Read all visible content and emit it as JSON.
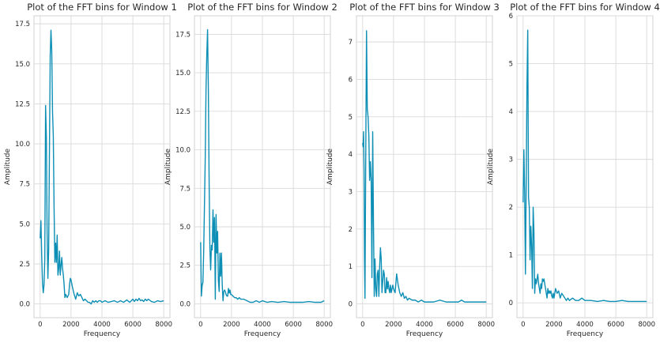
{
  "colors": {
    "series": "#0d8fb5",
    "grid": "#d9d9d9",
    "frame": "#cccccc",
    "text": "#262626"
  },
  "chart_data": [
    {
      "type": "line",
      "title": "Plot of the FFT bins for Window 1",
      "xlabel": "Frequency",
      "ylabel": "Amplitude",
      "xlim": [
        -400,
        8400
      ],
      "ylim": [
        -0.86,
        18.0
      ],
      "xticks": [
        0,
        2000,
        4000,
        6000,
        8000
      ],
      "xtick_labels": [
        "0",
        "2000",
        "4000",
        "6000",
        "8000"
      ],
      "yticks": [
        0,
        2.5,
        5,
        7.5,
        10,
        12.5,
        15,
        17.5
      ],
      "ytick_labels": [
        "0.0",
        "2.5",
        "5.0",
        "7.5",
        "10.0",
        "12.5",
        "15.0",
        "17.5"
      ],
      "grid": true,
      "x": [
        0,
        50,
        100,
        150,
        200,
        250,
        300,
        350,
        400,
        450,
        500,
        550,
        600,
        650,
        700,
        750,
        800,
        850,
        900,
        950,
        1000,
        1050,
        1100,
        1150,
        1200,
        1250,
        1300,
        1350,
        1400,
        1450,
        1500,
        1550,
        1600,
        1650,
        1700,
        1750,
        1800,
        1850,
        1900,
        1950,
        2000,
        2100,
        2200,
        2300,
        2400,
        2500,
        2600,
        2700,
        2800,
        2900,
        3000,
        3100,
        3200,
        3300,
        3400,
        3500,
        3600,
        3700,
        3800,
        3900,
        4000,
        4200,
        4400,
        4600,
        4800,
        5000,
        5200,
        5400,
        5600,
        5800,
        6000,
        6100,
        6200,
        6300,
        6400,
        6500,
        6600,
        6700,
        6800,
        6900,
        7000,
        7200,
        7400,
        7600,
        7800,
        8000
      ],
      "y": [
        4.1,
        5.2,
        3.0,
        1.3,
        0.7,
        1.2,
        2.8,
        12.4,
        10.5,
        4.5,
        1.6,
        3.4,
        9.5,
        15.5,
        17.1,
        15.8,
        12.0,
        10.5,
        6.0,
        2.6,
        3.8,
        2.6,
        4.3,
        1.8,
        2.2,
        3.3,
        1.8,
        2.4,
        2.9,
        2.2,
        1.8,
        1.2,
        0.4,
        0.6,
        0.5,
        0.4,
        0.5,
        0.6,
        1.2,
        1.6,
        1.5,
        1.0,
        0.6,
        0.3,
        0.7,
        0.5,
        0.6,
        0.4,
        0.2,
        0.3,
        0.2,
        0.1,
        0.1,
        0.0,
        0.2,
        0.1,
        0.2,
        0.1,
        0.2,
        0.2,
        0.1,
        0.2,
        0.1,
        0.15,
        0.2,
        0.1,
        0.2,
        0.1,
        0.25,
        0.1,
        0.3,
        0.15,
        0.3,
        0.2,
        0.35,
        0.2,
        0.25,
        0.15,
        0.3,
        0.2,
        0.3,
        0.15,
        0.1,
        0.2,
        0.15,
        0.2
      ]
    },
    {
      "type": "line",
      "title": "Plot of the FFT bins for Window 2",
      "xlabel": "Frequency",
      "ylabel": "Amplitude",
      "xlim": [
        -400,
        8400
      ],
      "ylim": [
        -0.9,
        18.7
      ],
      "xticks": [
        0,
        2000,
        4000,
        6000,
        8000
      ],
      "xtick_labels": [
        "0",
        "2000",
        "4000",
        "6000",
        "8000"
      ],
      "yticks": [
        0,
        2.5,
        5,
        7.5,
        10,
        12.5,
        15,
        17.5
      ],
      "ytick_labels": [
        "0.0",
        "2.5",
        "5.0",
        "7.5",
        "10.0",
        "12.5",
        "15.0",
        "17.5"
      ],
      "grid": true,
      "x": [
        0,
        50,
        100,
        150,
        200,
        250,
        300,
        350,
        400,
        450,
        500,
        550,
        600,
        650,
        700,
        750,
        800,
        850,
        900,
        950,
        1000,
        1050,
        1100,
        1150,
        1200,
        1250,
        1300,
        1350,
        1400,
        1450,
        1500,
        1550,
        1600,
        1650,
        1700,
        1750,
        1800,
        1850,
        1900,
        1950,
        2000,
        2100,
        2200,
        2300,
        2400,
        2500,
        2600,
        2800,
        3000,
        3200,
        3400,
        3600,
        3800,
        4000,
        4300,
        4600,
        5000,
        5400,
        5800,
        6200,
        6600,
        7000,
        7400,
        7800,
        8000
      ],
      "y": [
        4.0,
        0.5,
        1.2,
        1.4,
        3.5,
        6.5,
        9.5,
        14.0,
        16.2,
        17.8,
        14.0,
        8.0,
        3.6,
        2.2,
        3.8,
        3.5,
        6.1,
        4.0,
        5.6,
        0.3,
        5.8,
        3.3,
        4.7,
        1.5,
        0.8,
        3.3,
        1.8,
        3.3,
        1.2,
        0.2,
        0.8,
        0.9,
        0.8,
        0.6,
        0.5,
        0.5,
        1.0,
        0.7,
        0.9,
        0.6,
        0.6,
        0.5,
        0.4,
        0.4,
        0.3,
        0.4,
        0.3,
        0.3,
        0.2,
        0.1,
        0.1,
        0.2,
        0.1,
        0.2,
        0.1,
        0.15,
        0.1,
        0.15,
        0.1,
        0.1,
        0.1,
        0.15,
        0.1,
        0.1,
        0.2
      ]
    },
    {
      "type": "line",
      "title": "Plot of the FFT bins for Window 3",
      "xlabel": "Frequency",
      "ylabel": "Amplitude",
      "xlim": [
        -400,
        8400
      ],
      "ylim": [
        -0.37,
        7.7
      ],
      "xticks": [
        0,
        2000,
        4000,
        6000,
        8000
      ],
      "xtick_labels": [
        "0",
        "2000",
        "4000",
        "6000",
        "8000"
      ],
      "yticks": [
        0,
        1,
        2,
        3,
        4,
        5,
        6,
        7
      ],
      "ytick_labels": [
        "0",
        "1",
        "2",
        "3",
        "4",
        "5",
        "6",
        "7"
      ],
      "grid": true,
      "x": [
        0,
        30,
        60,
        90,
        120,
        150,
        200,
        250,
        300,
        350,
        400,
        450,
        500,
        550,
        600,
        650,
        700,
        750,
        800,
        850,
        900,
        950,
        1000,
        1050,
        1100,
        1150,
        1200,
        1250,
        1300,
        1350,
        1400,
        1450,
        1500,
        1550,
        1600,
        1650,
        1700,
        1750,
        1800,
        1850,
        1900,
        1950,
        2000,
        2100,
        2200,
        2300,
        2400,
        2500,
        2600,
        2700,
        2800,
        2900,
        3000,
        3200,
        3400,
        3600,
        3800,
        4000,
        4300,
        4600,
        5000,
        5400,
        5800,
        6200,
        6400,
        6600,
        7000,
        7400,
        7800,
        8000
      ],
      "y": [
        4.3,
        4.2,
        4.6,
        3.6,
        1.2,
        0.15,
        4.0,
        7.3,
        5.2,
        5.0,
        4.5,
        3.3,
        3.8,
        3.3,
        0.7,
        4.6,
        2.2,
        0.2,
        1.2,
        0.4,
        0.2,
        0.8,
        0.9,
        0.2,
        1.0,
        1.5,
        1.2,
        0.3,
        0.6,
        0.9,
        0.8,
        0.3,
        0.3,
        0.7,
        0.4,
        0.6,
        0.4,
        0.3,
        0.5,
        0.3,
        0.4,
        0.5,
        0.4,
        0.3,
        0.8,
        0.5,
        0.3,
        0.2,
        0.3,
        0.15,
        0.2,
        0.1,
        0.15,
        0.1,
        0.1,
        0.05,
        0.1,
        0.05,
        0.05,
        0.05,
        0.1,
        0.05,
        0.05,
        0.05,
        0.1,
        0.05,
        0.05,
        0.05,
        0.05,
        0.05
      ]
    },
    {
      "type": "line",
      "title": "Plot of the FFT bins for Window 4",
      "xlabel": "Frequency",
      "ylabel": "Amplitude",
      "xlim": [
        -400,
        8400
      ],
      "ylim": [
        -0.31,
        6.0
      ],
      "xticks": [
        0,
        2000,
        4000,
        6000,
        8000
      ],
      "xtick_labels": [
        "0",
        "2000",
        "4000",
        "6000",
        "8000"
      ],
      "yticks": [
        0,
        1,
        2,
        3,
        4,
        5,
        6
      ],
      "ytick_labels": [
        "0",
        "1",
        "2",
        "3",
        "4",
        "5",
        "6"
      ],
      "grid": true,
      "x": [
        0,
        50,
        100,
        150,
        200,
        250,
        300,
        350,
        400,
        450,
        500,
        550,
        600,
        650,
        700,
        750,
        800,
        850,
        900,
        950,
        1000,
        1050,
        1100,
        1150,
        1200,
        1250,
        1300,
        1350,
        1400,
        1450,
        1500,
        1550,
        1600,
        1650,
        1700,
        1750,
        1800,
        1850,
        1900,
        1950,
        2000,
        2100,
        2200,
        2300,
        2400,
        2500,
        2600,
        2700,
        2800,
        2900,
        3000,
        3200,
        3400,
        3600,
        3800,
        4000,
        4400,
        4800,
        5200,
        5600,
        6000,
        6400,
        6800,
        7200,
        7600,
        8000
      ],
      "y": [
        2.1,
        3.2,
        2.3,
        0.6,
        2.5,
        4.5,
        5.7,
        2.2,
        2.0,
        0.9,
        1.6,
        1.2,
        0.3,
        2.0,
        1.5,
        0.2,
        0.5,
        0.4,
        0.5,
        0.6,
        0.4,
        0.3,
        0.2,
        0.4,
        0.3,
        0.5,
        0.45,
        0.5,
        0.4,
        0.3,
        0.2,
        0.1,
        0.3,
        0.2,
        0.25,
        0.2,
        0.25,
        0.15,
        0.1,
        0.2,
        0.1,
        0.3,
        0.2,
        0.25,
        0.1,
        0.2,
        0.15,
        0.1,
        0.05,
        0.1,
        0.05,
        0.1,
        0.05,
        0.05,
        0.1,
        0.05,
        0.05,
        0.03,
        0.05,
        0.03,
        0.03,
        0.05,
        0.03,
        0.03,
        0.03,
        0.03
      ]
    }
  ]
}
